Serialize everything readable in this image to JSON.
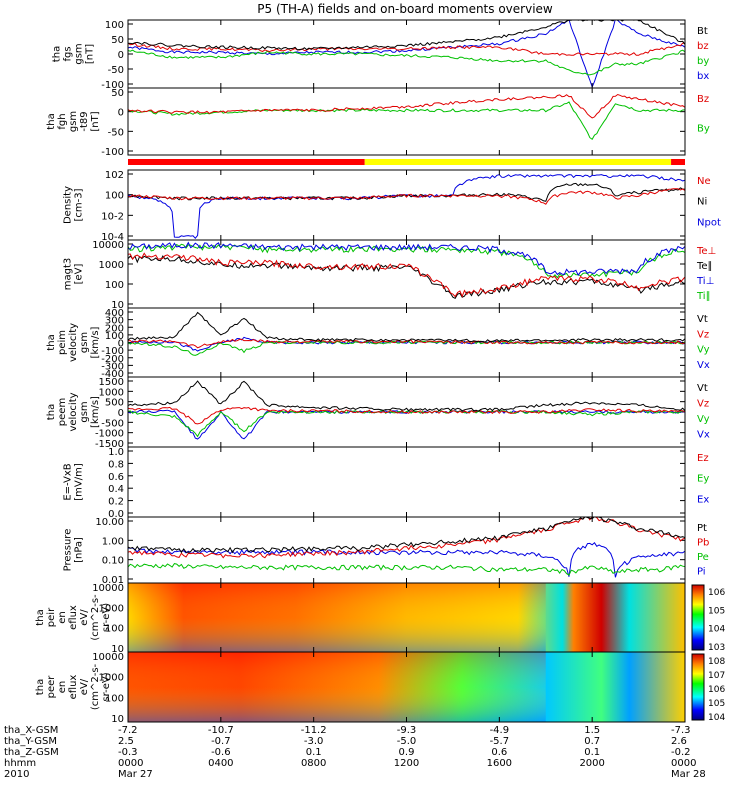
{
  "title": "P5 (TH-A) fields and on-board moments overview",
  "colors": {
    "black": "#000000",
    "red": "#e00000",
    "green": "#00c000",
    "blue": "#0000e0",
    "yellow": "#e8e800",
    "cyan": "#00c8c8"
  },
  "bar_status": {
    "segments": [
      {
        "from": 0,
        "to": 0.425,
        "color": "#ff0000"
      },
      {
        "from": 0.425,
        "to": 0.975,
        "color": "#ffff00"
      },
      {
        "from": 0.975,
        "to": 1,
        "color": "#ff0000"
      }
    ]
  },
  "panels": [
    {
      "id": "fgs",
      "ylabel": [
        "tha",
        "fgs",
        "gsm",
        "[nT]"
      ],
      "ticks": [
        "100",
        "50",
        "0",
        "-50",
        "-100"
      ],
      "legend": [
        {
          "t": "Bt",
          "c": "#000000"
        },
        {
          "t": "bz",
          "c": "#e00000"
        },
        {
          "t": "by",
          "c": "#00c000"
        },
        {
          "t": "bx",
          "c": "#0000e0"
        }
      ]
    },
    {
      "id": "fgh",
      "ylabel": [
        "tha",
        "fgh",
        "gsm",
        "-t89",
        "[nT]"
      ],
      "ticks": [
        "50",
        "0",
        "-50",
        "-100"
      ],
      "legend": [
        {
          "t": "Bz",
          "c": "#e00000"
        },
        {
          "t": "By",
          "c": "#00c000"
        }
      ]
    },
    {
      "id": "density",
      "ylabel": [
        "Density",
        "[cm-3]"
      ],
      "ticks": [
        "10^2",
        "10^0",
        "10^-2",
        "10^-4"
      ],
      "legend": [
        {
          "t": "Ne",
          "c": "#e00000"
        },
        {
          "t": "Ni",
          "c": "#000000"
        },
        {
          "t": "Npot",
          "c": "#0000e0"
        }
      ]
    },
    {
      "id": "temp",
      "ylabel": [
        "magt3",
        "[eV]"
      ],
      "ticks": [
        "10000",
        "1000",
        "100",
        "10"
      ],
      "legend": [
        {
          "t": "Te⊥",
          "c": "#e00000"
        },
        {
          "t": "Te∥",
          "c": "#000000"
        },
        {
          "t": "Ti⊥",
          "c": "#0000e0"
        },
        {
          "t": "Ti∥",
          "c": "#00c000"
        }
      ]
    },
    {
      "id": "peim",
      "ylabel": [
        "tha",
        "peim",
        "velocity",
        "gsm",
        "[km/s]"
      ],
      "ticks": [
        "400",
        "300",
        "200",
        "100",
        "0",
        "-100",
        "-200",
        "-300",
        "-400"
      ],
      "legend": [
        {
          "t": "Vt",
          "c": "#000000"
        },
        {
          "t": "Vz",
          "c": "#e00000"
        },
        {
          "t": "Vy",
          "c": "#00c000"
        },
        {
          "t": "Vx",
          "c": "#0000e0"
        }
      ]
    },
    {
      "id": "peem",
      "ylabel": [
        "tha",
        "peem",
        "velocity",
        "gsm",
        "[km/s]"
      ],
      "ticks": [
        "1500",
        "1000",
        "500",
        "0",
        "-500",
        "-1000",
        "-1500"
      ],
      "legend": [
        {
          "t": "Vt",
          "c": "#000000"
        },
        {
          "t": "Vz",
          "c": "#e00000"
        },
        {
          "t": "Vy",
          "c": "#00c000"
        },
        {
          "t": "Vx",
          "c": "#0000e0"
        }
      ]
    },
    {
      "id": "efield",
      "ylabel": [
        "E=-VxB",
        "[mV/m]"
      ],
      "ticks": [
        "1.0",
        "0.8",
        "0.6",
        "0.4",
        "0.2",
        "0.0"
      ],
      "legend": [
        {
          "t": "Ez",
          "c": "#e00000"
        },
        {
          "t": "Ey",
          "c": "#00c000"
        },
        {
          "t": "Ex",
          "c": "#0000e0"
        }
      ]
    },
    {
      "id": "pressure",
      "ylabel": [
        "Pressure",
        "[nPa]"
      ],
      "ticks": [
        "10.00",
        "1.00",
        "0.10",
        "0.01"
      ],
      "legend": [
        {
          "t": "Pt",
          "c": "#000000"
        },
        {
          "t": "Pb",
          "c": "#e00000"
        },
        {
          "t": "Pe",
          "c": "#00c000"
        },
        {
          "t": "Pi",
          "c": "#0000e0"
        }
      ]
    },
    {
      "id": "peir",
      "ylabel": [
        "tha",
        "peir",
        "en",
        "eflux",
        "eV/",
        "(cm^2-s-",
        "sr-eV)"
      ],
      "ticks": [
        "10000",
        "1000",
        "100",
        "10"
      ],
      "colorbar": [
        "10^6",
        "10^5",
        "10^4",
        "10^3"
      ]
    },
    {
      "id": "peer",
      "ylabel": [
        "tha",
        "peer",
        "en",
        "eflux",
        "eV/",
        "(cm^2-s-",
        "sr-eV)"
      ],
      "ticks": [
        "10000",
        "1000",
        "100",
        "10"
      ],
      "colorbar": [
        "10^8",
        "10^7",
        "10^6",
        "10^5",
        "10^4"
      ]
    }
  ],
  "orbit_labels": [
    "tha_X-GSM",
    "tha_Y-GSM",
    "tha_Z-GSM",
    "hhmm",
    "2010"
  ],
  "orbit_columns": [
    [
      "-7.2",
      "2.5",
      "-0.3",
      "0000",
      "Mar 27"
    ],
    [
      "-10.7",
      "-0.7",
      "-0.6",
      "0400",
      ""
    ],
    [
      "-11.2",
      "-3.0",
      "0.1",
      "0800",
      ""
    ],
    [
      "-9.3",
      "-5.0",
      "0.9",
      "1200",
      ""
    ],
    [
      "-4.9",
      "-5.7",
      "0.6",
      "1600",
      ""
    ],
    [
      "1.5",
      "0.7",
      "0.1",
      "2000",
      ""
    ],
    [
      "-7.3",
      "2.6",
      "-0.2",
      "0000",
      "Mar 28"
    ]
  ],
  "chart_data": {
    "type": "line",
    "title": "P5 (TH-A) fields and on-board moments overview",
    "x_range": [
      "2010-03-27 00:00",
      "2010-03-28 00:00"
    ],
    "x_ticks": [
      "0000",
      "0400",
      "0800",
      "1200",
      "1600",
      "2000",
      "0000"
    ],
    "fgs_bfield_nT": {
      "ylim": [
        -100,
        100
      ],
      "hours": [
        0,
        2,
        4,
        6,
        8,
        10,
        12,
        14,
        16,
        18,
        19,
        20,
        21,
        22,
        24
      ],
      "series": [
        {
          "name": "Bt",
          "values": [
            35,
            25,
            20,
            18,
            15,
            20,
            25,
            35,
            50,
            80,
            100,
            100,
            100,
            100,
            30
          ]
        },
        {
          "name": "bz",
          "values": [
            30,
            15,
            15,
            10,
            15,
            15,
            15,
            20,
            20,
            0,
            0,
            0,
            0,
            0,
            30
          ]
        },
        {
          "name": "by",
          "values": [
            10,
            -10,
            -10,
            5,
            0,
            0,
            -5,
            -10,
            -20,
            -20,
            -50,
            -60,
            -30,
            -30,
            10
          ]
        },
        {
          "name": "bx",
          "values": [
            20,
            5,
            5,
            0,
            5,
            5,
            10,
            20,
            30,
            60,
            100,
            -100,
            100,
            60,
            20
          ]
        }
      ]
    },
    "fgh_bfield_t89_nT": {
      "ylim": [
        -120,
        60
      ],
      "hours": [
        0,
        2,
        4,
        6,
        8,
        10,
        12,
        14,
        16,
        18,
        19,
        20,
        21,
        22,
        24
      ],
      "series": [
        {
          "name": "Bz",
          "values": [
            0,
            -5,
            -5,
            0,
            0,
            5,
            10,
            20,
            30,
            35,
            40,
            -20,
            40,
            30,
            10
          ]
        },
        {
          "name": "By",
          "values": [
            0,
            -10,
            -5,
            0,
            0,
            0,
            0,
            0,
            0,
            0,
            20,
            -80,
            20,
            0,
            0
          ]
        }
      ]
    },
    "density_cm3": {
      "scale": "log",
      "ylim": [
        5e-05,
        100
      ],
      "hours": [
        0,
        2,
        3,
        4,
        6,
        8,
        10,
        12,
        14,
        16,
        18,
        19,
        20,
        21,
        22,
        24
      ],
      "series": [
        {
          "name": "Ne",
          "values": [
            0.5,
            0.3,
            0.3,
            0.3,
            0.3,
            0.3,
            0.3,
            0.5,
            0.5,
            0.5,
            0.1,
            1,
            1,
            0.3,
            0.5,
            2
          ]
        },
        {
          "name": "Ni",
          "values": [
            0.5,
            0.3,
            0.3,
            0.3,
            0.3,
            0.3,
            0.3,
            0.5,
            0.5,
            0.7,
            0.15,
            5,
            5,
            0.5,
            1,
            2
          ]
        },
        {
          "name": "Npot",
          "values": [
            0.5,
            0.0001,
            0.0001,
            0.3,
            0.3,
            0.3,
            0.3,
            0.5,
            0.5,
            30,
            30,
            30,
            30,
            30,
            30,
            10
          ]
        }
      ]
    },
    "temperature_eV": {
      "scale": "log",
      "ylim": [
        10,
        10000
      ],
      "hours": [
        0,
        2,
        4,
        6,
        8,
        10,
        12,
        13,
        14,
        16,
        18,
        20,
        22,
        24
      ],
      "series": [
        {
          "name": "Te⊥",
          "values": [
            2000,
            2000,
            1000,
            1000,
            700,
            700,
            700,
            200,
            40,
            70,
            200,
            200,
            80,
            200
          ]
        },
        {
          "name": "Te∥",
          "values": [
            1500,
            1500,
            800,
            800,
            600,
            600,
            600,
            150,
            30,
            60,
            150,
            150,
            60,
            150
          ]
        },
        {
          "name": "Ti⊥",
          "values": [
            5000,
            6000,
            6000,
            5000,
            5000,
            5000,
            5000,
            5000,
            5000,
            4000,
            400,
            400,
            500,
            5000
          ]
        },
        {
          "name": "Ti∥",
          "values": [
            4000,
            5000,
            5000,
            4000,
            4000,
            4000,
            4000,
            4000,
            4000,
            3000,
            300,
            300,
            400,
            4000
          ]
        }
      ]
    },
    "peim_velocity_km_s": {
      "ylim": [
        -400,
        400
      ],
      "hours": [
        0,
        2,
        3,
        4,
        5,
        6,
        8,
        10,
        12,
        16,
        20,
        24
      ],
      "series": [
        {
          "name": "Vt",
          "values": [
            40,
            60,
            350,
            80,
            280,
            50,
            30,
            30,
            30,
            20,
            30,
            30
          ]
        },
        {
          "name": "Vz",
          "values": [
            10,
            20,
            -50,
            10,
            30,
            10,
            10,
            10,
            10,
            0,
            0,
            0
          ]
        },
        {
          "name": "Vy",
          "values": [
            0,
            -50,
            -150,
            0,
            -100,
            0,
            0,
            0,
            0,
            0,
            0,
            0
          ]
        },
        {
          "name": "Vx",
          "values": [
            0,
            10,
            -100,
            0,
            50,
            0,
            0,
            0,
            0,
            0,
            0,
            0
          ]
        }
      ]
    },
    "peem_velocity_km_s": {
      "ylim": [
        -1500,
        1500
      ],
      "hours": [
        0,
        2,
        3,
        4,
        5,
        6,
        8,
        12,
        16,
        18,
        20,
        22,
        24
      ],
      "series": [
        {
          "name": "Vt",
          "values": [
            300,
            400,
            1300,
            300,
            1300,
            300,
            200,
            100,
            100,
            300,
            400,
            300,
            100
          ]
        },
        {
          "name": "Vz",
          "values": [
            100,
            150,
            -500,
            100,
            200,
            50,
            50,
            0,
            0,
            0,
            100,
            50,
            0
          ]
        },
        {
          "name": "Vy",
          "values": [
            0,
            -200,
            -1000,
            0,
            -800,
            0,
            0,
            0,
            0,
            0,
            -100,
            0,
            0
          ]
        },
        {
          "name": "Vx",
          "values": [
            0,
            50,
            -1200,
            0,
            -1200,
            0,
            0,
            0,
            0,
            0,
            0,
            0,
            0
          ]
        }
      ]
    },
    "efield_mV_m": {
      "ylim": [
        0,
        1
      ],
      "series": [
        {
          "name": "Ez",
          "values": []
        },
        {
          "name": "Ey",
          "values": []
        },
        {
          "name": "Ex",
          "values": []
        }
      ]
    },
    "pressure_nPa": {
      "scale": "log",
      "ylim": [
        0.005,
        30
      ],
      "hours": [
        0,
        2,
        4,
        6,
        8,
        10,
        12,
        14,
        16,
        18,
        19,
        20,
        21,
        22,
        23,
        24
      ],
      "series": [
        {
          "name": "Pt",
          "values": [
            0.5,
            0.4,
            0.4,
            0.4,
            0.5,
            0.5,
            0.8,
            1.2,
            2,
            6,
            15,
            30,
            15,
            6,
            4,
            2
          ]
        },
        {
          "name": "Pb",
          "values": [
            0.3,
            0.2,
            0.2,
            0.2,
            0.25,
            0.3,
            0.5,
            0.8,
            1.5,
            5,
            15,
            30,
            15,
            5,
            3,
            1.5
          ]
        },
        {
          "name": "Pe",
          "values": [
            0.05,
            0.05,
            0.04,
            0.04,
            0.04,
            0.04,
            0.04,
            0.04,
            0.03,
            0.03,
            0.02,
            0.04,
            0.02,
            0.03,
            0.03,
            0.05
          ]
        },
        {
          "name": "Pi",
          "values": [
            0.4,
            0.3,
            0.3,
            0.3,
            0.3,
            0.3,
            0.3,
            0.3,
            0.3,
            0.2,
            0.01,
            1,
            0.01,
            0.15,
            0.2,
            0.3
          ]
        }
      ]
    },
    "peir_spectrogram": {
      "type": "heatmap",
      "ylabel": "eV",
      "ylim": [
        10,
        20000
      ],
      "clim": [
        1000,
        1000000
      ]
    },
    "peer_spectrogram": {
      "type": "heatmap",
      "ylabel": "eV",
      "ylim": [
        10,
        20000
      ],
      "clim": [
        10000,
        100000000
      ]
    }
  }
}
